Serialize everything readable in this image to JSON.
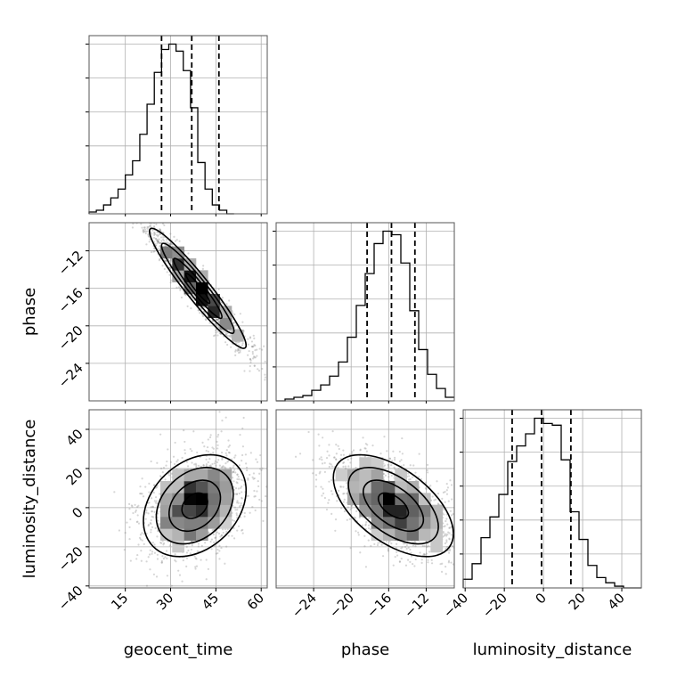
{
  "chart_data": {
    "type": "corner",
    "parameters": [
      "geocent_time",
      "phase",
      "luminosity_distance"
    ],
    "ranges": {
      "geocent_time": [
        3,
        62
      ],
      "phase": [
        -28,
        -9
      ],
      "luminosity_distance": [
        -41,
        50
      ]
    },
    "ticks": {
      "geocent_time": [
        15,
        30,
        45,
        60
      ],
      "phase": [
        -24,
        -20,
        -16,
        -12
      ],
      "luminosity_distance": [
        -40,
        -20,
        0,
        20,
        40
      ]
    },
    "tick_labels": {
      "geocent_time": [
        "15",
        "30",
        "45",
        "60"
      ],
      "phase": [
        "−24",
        "−20",
        "−16",
        "−12"
      ],
      "luminosity_distance": [
        "−40",
        "−20",
        "0",
        "20",
        "40"
      ]
    },
    "quantiles": {
      "geocent_time": [
        27,
        37,
        46
      ],
      "phase": [
        -18.3,
        -15.7,
        -13.2
      ],
      "luminosity_distance": [
        -16,
        -1,
        14
      ]
    },
    "histograms": {
      "geocent_time": {
        "x0": 3,
        "dx": 2.4,
        "counts": [
          1,
          2,
          5,
          9,
          14,
          22,
          30,
          45,
          62,
          80,
          93,
          96,
          92,
          81,
          60,
          29,
          14,
          5,
          2,
          0
        ]
      },
      "phase": {
        "x0": -28,
        "dx": 0.95,
        "counts": [
          0,
          1,
          2,
          3,
          6,
          9,
          14,
          22,
          36,
          54,
          72,
          89,
          96,
          94,
          78,
          51,
          29,
          15,
          7,
          2
        ]
      },
      "luminosity_distance": {
        "x0": -41,
        "dx": 4.55,
        "counts": [
          5,
          14,
          29,
          41,
          54,
          73,
          82,
          89,
          98,
          95,
          94,
          74,
          44,
          28,
          13,
          6,
          3,
          1,
          0,
          0
        ]
      }
    },
    "pairs": [
      {
        "x": "geocent_time",
        "y": "phase",
        "mean": [
          39,
          -16
        ],
        "sd": [
          8,
          3.2
        ],
        "corr": -0.95,
        "npts": 1600,
        "seed": 11
      },
      {
        "x": "geocent_time",
        "y": "luminosity_distance",
        "mean": [
          38,
          1
        ],
        "sd": [
          8.5,
          13
        ],
        "corr": 0.3,
        "npts": 1600,
        "seed": 23
      },
      {
        "x": "phase",
        "y": "luminosity_distance",
        "mean": [
          -15.5,
          1
        ],
        "sd": [
          3.2,
          13
        ],
        "corr": -0.55,
        "npts": 1600,
        "seed": 37
      }
    ],
    "contour_levels_sigma": [
      0.5,
      1,
      1.5,
      2
    ],
    "grid": true,
    "colors": {
      "line": "#000000",
      "scatter": "#8a8a8a",
      "grid": "#b0b0b0"
    }
  }
}
